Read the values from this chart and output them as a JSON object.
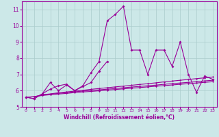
{
  "x": [
    0,
    1,
    2,
    3,
    4,
    5,
    6,
    7,
    8,
    9,
    10,
    11,
    12,
    13,
    14,
    15,
    16,
    17,
    18,
    19,
    20,
    21,
    22,
    23
  ],
  "series1": [
    5.6,
    5.5,
    5.8,
    6.1,
    6.3,
    6.4,
    6.0,
    6.3,
    7.1,
    7.8,
    10.3,
    10.7,
    11.2,
    8.5,
    8.5,
    7.0,
    8.5,
    8.5,
    7.5,
    9.0,
    7.0,
    5.9,
    6.9,
    6.7
  ],
  "series2": [
    5.6,
    5.5,
    5.8,
    6.5,
    6.0,
    6.35,
    6.0,
    6.25,
    6.5,
    7.2,
    7.8,
    null,
    null,
    null,
    null,
    null,
    null,
    null,
    null,
    null,
    null,
    null,
    null,
    null
  ],
  "series3": [
    5.6,
    5.62,
    5.75,
    5.8,
    5.87,
    5.92,
    5.97,
    6.02,
    6.08,
    6.13,
    6.18,
    6.23,
    6.28,
    6.33,
    6.38,
    6.43,
    6.48,
    6.54,
    6.59,
    6.64,
    6.69,
    6.74,
    6.79,
    6.84
  ],
  "series4": [
    5.6,
    5.62,
    5.73,
    5.78,
    5.83,
    5.88,
    5.93,
    5.97,
    6.01,
    6.05,
    6.09,
    6.13,
    6.18,
    6.22,
    6.26,
    6.3,
    6.34,
    6.39,
    6.43,
    6.47,
    6.51,
    6.55,
    6.6,
    6.64
  ],
  "series5": [
    5.6,
    5.62,
    5.7,
    5.75,
    5.79,
    5.83,
    5.88,
    5.92,
    5.95,
    5.99,
    6.03,
    6.07,
    6.11,
    6.15,
    6.19,
    6.23,
    6.27,
    6.31,
    6.35,
    6.39,
    6.43,
    6.47,
    6.51,
    6.55
  ],
  "line_color": "#990099",
  "bg_color": "#cce8e8",
  "grid_color": "#aacccc",
  "xlabel": "Windchill (Refroidissement éolien,°C)",
  "ylim": [
    5.0,
    11.5
  ],
  "xlim": [
    -0.5,
    23.5
  ],
  "yticks": [
    5,
    6,
    7,
    8,
    9,
    10,
    11
  ],
  "xticks": [
    0,
    1,
    2,
    3,
    4,
    5,
    6,
    7,
    8,
    9,
    10,
    11,
    12,
    13,
    14,
    15,
    16,
    17,
    18,
    19,
    20,
    21,
    22,
    23
  ]
}
